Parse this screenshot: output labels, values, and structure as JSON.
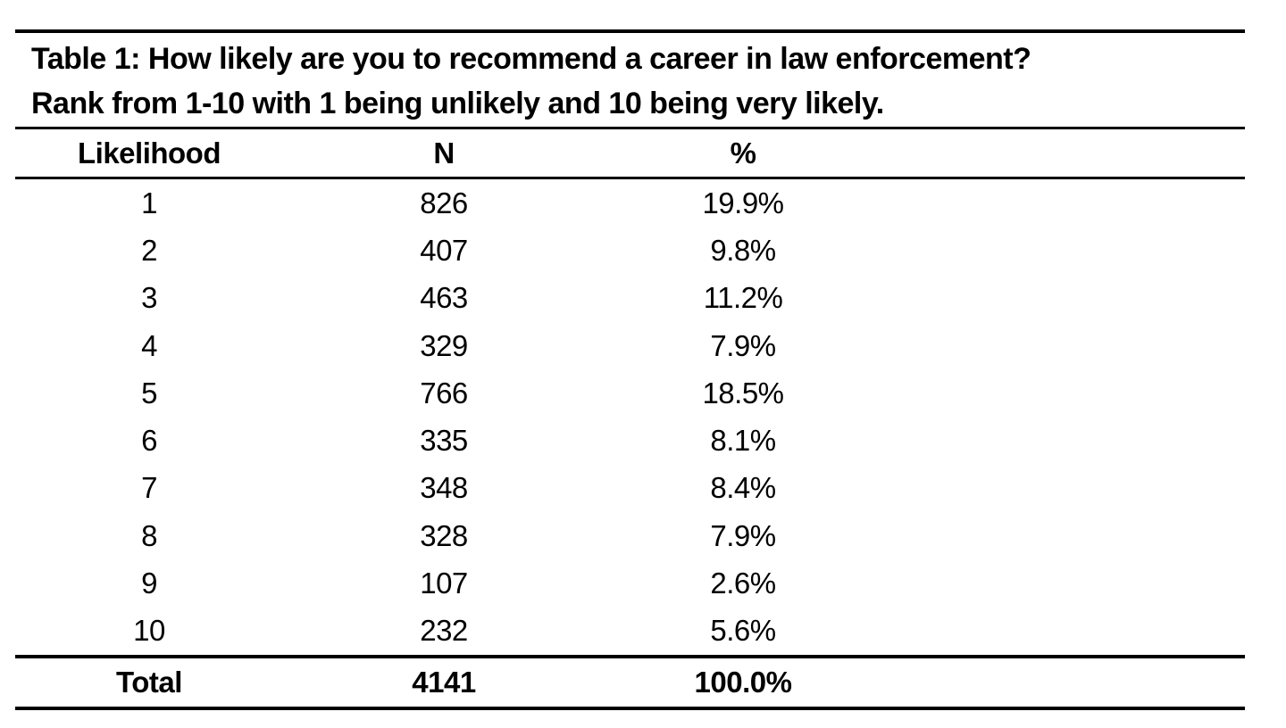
{
  "page": {
    "background": "#ffffff"
  },
  "table": {
    "caption": {
      "line1": "Table 1: How likely are you to recommend a career in law enforcement?",
      "line2": "Rank from 1-10 with 1 being unlikely and 10 being very likely."
    },
    "columns": {
      "likelihood": "Likelihood",
      "n": "N",
      "pct": "%"
    },
    "rows": [
      {
        "likelihood": "1",
        "n": "826",
        "pct": "19.9%"
      },
      {
        "likelihood": "2",
        "n": "407",
        "pct": "9.8%"
      },
      {
        "likelihood": "3",
        "n": "463",
        "pct": "11.2%"
      },
      {
        "likelihood": "4",
        "n": "329",
        "pct": "7.9%"
      },
      {
        "likelihood": "5",
        "n": "766",
        "pct": "18.5%"
      },
      {
        "likelihood": "6",
        "n": "335",
        "pct": "8.1%"
      },
      {
        "likelihood": "7",
        "n": "348",
        "pct": "8.4%"
      },
      {
        "likelihood": "8",
        "n": "328",
        "pct": "7.9%"
      },
      {
        "likelihood": "9",
        "n": "107",
        "pct": "2.6%"
      },
      {
        "likelihood": "10",
        "n": "232",
        "pct": "5.6%"
      }
    ],
    "total": {
      "label": "Total",
      "n": "4141",
      "pct": "100.0%"
    },
    "colors": {
      "text": "#000000",
      "rule": "#000000",
      "background": "#ffffff"
    }
  }
}
